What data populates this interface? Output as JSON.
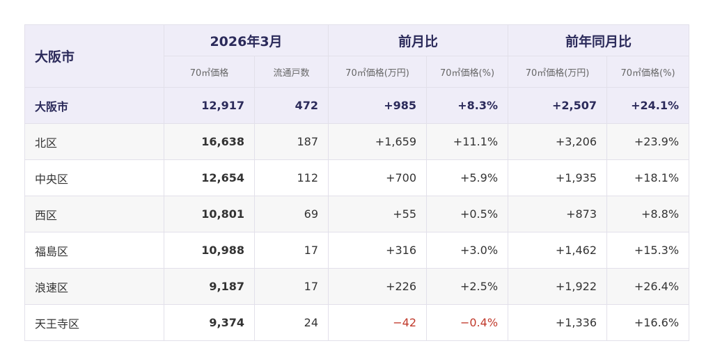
{
  "table": {
    "city_header": "大阪市",
    "groups": [
      "2026年3月",
      "前月比",
      "前年同月比"
    ],
    "subheaders": [
      "70㎡価格",
      "流通戸数",
      "70㎡価格(万円)",
      "70㎡価格(%)",
      "70㎡価格(万円)",
      "70㎡価格(%)"
    ],
    "rows": [
      {
        "name": "大阪市",
        "price": "12,917",
        "stock": "472",
        "mom_yen": "+985",
        "mom_pct": "+8.3%",
        "yoy_yen": "+2,507",
        "yoy_pct": "+24.1%"
      },
      {
        "name": "北区",
        "price": "16,638",
        "stock": "187",
        "mom_yen": "+1,659",
        "mom_pct": "+11.1%",
        "yoy_yen": "+3,206",
        "yoy_pct": "+23.9%"
      },
      {
        "name": "中央区",
        "price": "12,654",
        "stock": "112",
        "mom_yen": "+700",
        "mom_pct": "+5.9%",
        "yoy_yen": "+1,935",
        "yoy_pct": "+18.1%"
      },
      {
        "name": "西区",
        "price": "10,801",
        "stock": "69",
        "mom_yen": "+55",
        "mom_pct": "+0.5%",
        "yoy_yen": "+873",
        "yoy_pct": "+8.8%"
      },
      {
        "name": "福島区",
        "price": "10,988",
        "stock": "17",
        "mom_yen": "+316",
        "mom_pct": "+3.0%",
        "yoy_yen": "+1,462",
        "yoy_pct": "+15.3%"
      },
      {
        "name": "浪速区",
        "price": "9,187",
        "stock": "17",
        "mom_yen": "+226",
        "mom_pct": "+2.5%",
        "yoy_yen": "+1,922",
        "yoy_pct": "+26.4%"
      },
      {
        "name": "天王寺区",
        "price": "9,374",
        "stock": "24",
        "mom_yen": "−42",
        "mom_pct": "−0.4%",
        "yoy_yen": "+1,336",
        "yoy_pct": "+16.6%"
      }
    ]
  }
}
